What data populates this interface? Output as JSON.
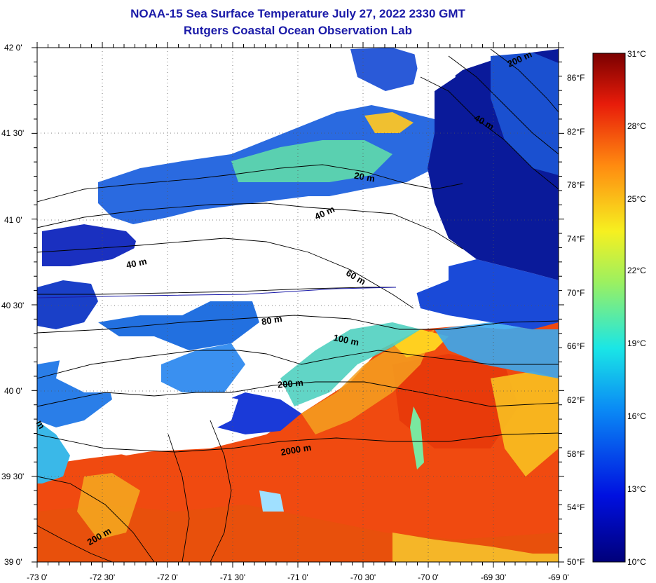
{
  "title": {
    "line1": "NOAA-15 Sea Surface Temperature July 27, 2022 2330 GMT",
    "line2": "Rutgers Coastal Ocean Observation Lab"
  },
  "axes": {
    "lat_labels": [
      "42 0'",
      "41 30'",
      "41 0'",
      "40 30'",
      "40 0'",
      "39 30'",
      "39 0'"
    ],
    "lon_labels": [
      "-73 0'",
      "-72 30'",
      "-72 0'",
      "-71 30'",
      "-71 0'",
      "-70 30'",
      "-70 0'",
      "-69 30'",
      "-69 0'"
    ]
  },
  "colorbar": {
    "fahrenheit_labels": [
      "86°F",
      "82°F",
      "78°F",
      "74°F",
      "70°F",
      "66°F",
      "62°F",
      "58°F",
      "54°F",
      "50°F"
    ],
    "celsius_labels": [
      "31°C",
      "28°C",
      "25°C",
      "22°C",
      "19°C",
      "16°C",
      "13°C",
      "10°C"
    ]
  },
  "contour_labels": [
    "200 m",
    "40 m",
    "20 m",
    "40 m",
    "40 m",
    "60 m",
    "80 m",
    "100 m",
    "200 m",
    "2000 m",
    "200 m",
    "m"
  ],
  "colors": {
    "title": "#1a1aa8",
    "land_cloud": "#ffffff",
    "warm": "#f04a10",
    "cold": "#0a1a9a"
  }
}
